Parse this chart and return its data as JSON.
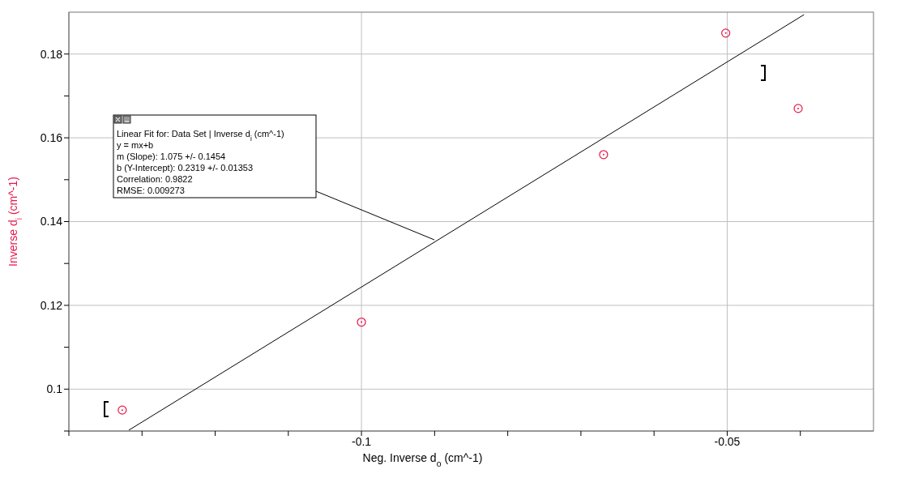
{
  "chart_data": {
    "type": "scatter",
    "xlabel": "Neg. Inverse d$_{o}$ (cm^-1)",
    "ylabel": "Inverse d$_{i}$ (cm^-1)",
    "x": [
      -0.1327,
      -0.1,
      -0.0669,
      -0.0502,
      -0.0403
    ],
    "series": [
      {
        "name": null,
        "color": "#e8174a",
        "marker": "circle",
        "values": [
          0.095,
          0.116,
          0.156,
          0.185,
          0.167
        ]
      },
      {
        "name": null,
        "type": "line",
        "color": "#000000",
        "marker": "none",
        "line_style": "solid",
        "x": [
          -0.1318,
          -0.0395
        ],
        "values": [
          0.0902,
          0.1894
        ]
      }
    ],
    "xlim": [
      -0.14,
      -0.03
    ],
    "ylim": [
      0.09,
      0.19
    ],
    "xticks": [
      {
        "value": -0.14,
        "label": null
      },
      {
        "value": -0.13,
        "label": null
      },
      {
        "value": -0.12,
        "label": null
      },
      {
        "value": -0.11,
        "label": null
      },
      -0.1,
      {
        "value": -0.09,
        "label": null
      },
      {
        "value": -0.08,
        "label": null
      },
      {
        "value": -0.07,
        "label": null
      },
      {
        "value": -0.06,
        "label": null
      },
      -0.05,
      {
        "value": -0.04,
        "label": null
      }
    ],
    "yticks": [
      {
        "value": 0.09,
        "label": null
      },
      0.1,
      {
        "value": 0.11,
        "label": null
      },
      0.12,
      {
        "value": 0.13,
        "label": null
      },
      0.14,
      {
        "value": 0.15,
        "label": null
      },
      0.16,
      {
        "value": 0.17,
        "label": null
      },
      0.18
    ],
    "grid": true,
    "legend": false,
    "annotations": [
      "Linear Fit for: Data Set | Inverse d$_{i}$ (cm^-1)",
      "y = mx+b",
      "m (Slope): 1.075 +/- 0.1454",
      "b (Y-Intercept): 0.2319 +/- 0.01353",
      "Correlation: 0.9822",
      "RMSE: 0.009273"
    ]
  }
}
